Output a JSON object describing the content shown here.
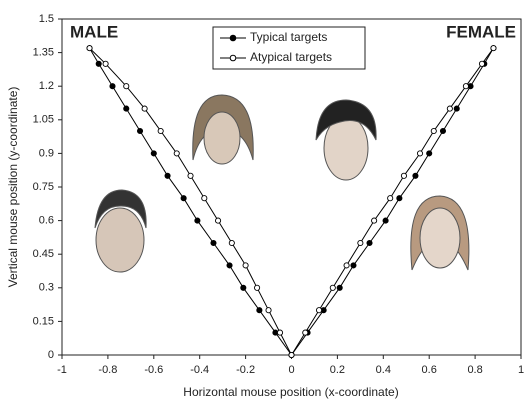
{
  "chart_data": {
    "type": "scatter",
    "x_label": "Horizontal mouse position (x-coordinate)",
    "y_label": "Vertical mouse position (y-coordinate)",
    "annotations": [
      "MALE",
      "FEMALE"
    ],
    "xlim": [
      -1,
      1
    ],
    "xticks": [
      -1,
      -0.8,
      -0.6,
      -0.4,
      -0.2,
      0,
      0.2,
      0.4,
      0.6,
      0.8,
      1
    ],
    "ylim": [
      0,
      1.5
    ],
    "yticks": [
      0,
      0.15,
      0.3,
      0.45,
      0.6,
      0.75,
      0.9,
      1.05,
      1.2,
      1.35,
      1.5
    ],
    "series": [
      {
        "name": "Typical targets",
        "color": "#000000",
        "marker": "filled",
        "x": [
          -0.88,
          -0.84,
          -0.78,
          -0.72,
          -0.66,
          -0.6,
          -0.54,
          -0.47,
          -0.41,
          -0.34,
          -0.27,
          -0.21,
          -0.14,
          -0.07,
          0,
          null,
          0,
          0.07,
          0.14,
          0.21,
          0.27,
          0.34,
          0.41,
          0.47,
          0.54,
          0.6,
          0.66,
          0.72,
          0.78,
          0.84,
          0.88
        ],
        "values": [
          1.37,
          1.3,
          1.2,
          1.1,
          1,
          0.9,
          0.8,
          0.7,
          0.6,
          0.5,
          0.4,
          0.3,
          0.2,
          0.1,
          0,
          null,
          0,
          0.1,
          0.2,
          0.3,
          0.4,
          0.5,
          0.6,
          0.7,
          0.8,
          0.9,
          1,
          1.1,
          1.2,
          1.3,
          1.37
        ]
      },
      {
        "name": "Atypical targets",
        "color": "#000000",
        "marker": "open",
        "x": [
          -0.88,
          -0.81,
          -0.72,
          -0.64,
          -0.57,
          -0.5,
          -0.44,
          -0.38,
          -0.32,
          -0.26,
          -0.2,
          -0.15,
          -0.1,
          -0.05,
          0,
          null,
          0,
          0.06,
          0.12,
          0.18,
          0.24,
          0.3,
          0.36,
          0.43,
          0.49,
          0.56,
          0.62,
          0.69,
          0.76,
          0.83,
          0.88
        ],
        "values": [
          1.37,
          1.3,
          1.2,
          1.1,
          1,
          0.9,
          0.8,
          0.7,
          0.6,
          0.5,
          0.4,
          0.3,
          0.2,
          0.1,
          0,
          null,
          0,
          0.1,
          0.2,
          0.3,
          0.4,
          0.5,
          0.6,
          0.7,
          0.8,
          0.9,
          1,
          1.1,
          1.2,
          1.3,
          1.37
        ]
      }
    ]
  }
}
